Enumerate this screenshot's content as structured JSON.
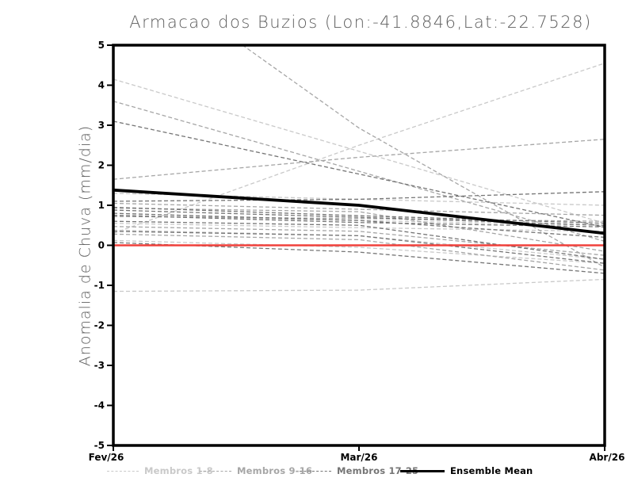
{
  "chart_data": {
    "type": "line",
    "title": "Armacao dos Buzios (Lon:-41.8846,Lat:-22.7528)",
    "xlabel": "",
    "ylabel": "Anomalia de Chuva (mm/dia)",
    "x_categories": [
      "Fev/26",
      "Mar/26",
      "Abr/26"
    ],
    "ylim": [
      -5,
      5
    ],
    "yticks": [
      5,
      4,
      3,
      2,
      1,
      0,
      -1,
      -2,
      -3,
      -4,
      -5
    ],
    "grid": false,
    "legend_position": "bottom",
    "axis_color": "#000000",
    "series_groups": [
      {
        "name": "Membros 1-8",
        "color": "#c9c9c9",
        "style": "dashed",
        "members": [
          [
            4.15,
            2.35,
            0.55
          ],
          [
            0.3,
            2.5,
            4.55
          ],
          [
            1.3,
            1.15,
            1.0
          ],
          [
            0.75,
            0.62,
            0.5
          ],
          [
            0.38,
            0.24,
            -0.35
          ],
          [
            0.12,
            -0.05,
            -0.45
          ],
          [
            -1.15,
            -1.12,
            -0.85
          ],
          [
            0.55,
            0.44,
            0.35
          ]
        ]
      },
      {
        "name": "Membros 9-16",
        "color": "#a6a6a6",
        "style": "dashed",
        "members": [
          [
            7.3,
            2.93,
            -0.55
          ],
          [
            1.65,
            2.2,
            2.65
          ],
          [
            3.6,
            1.85,
            0.1
          ],
          [
            0.93,
            0.84,
            -0.15
          ],
          [
            0.72,
            0.67,
            0.6
          ],
          [
            0.47,
            0.35,
            -0.25
          ],
          [
            0.28,
            0.14,
            -0.62
          ],
          [
            1.05,
            0.9,
            0.75
          ]
        ]
      },
      {
        "name": "Membros 17-25",
        "color": "#757575",
        "style": "dashed",
        "members": [
          [
            3.1,
            1.78,
            0.45
          ],
          [
            1.1,
            1.15,
            1.34
          ],
          [
            0.95,
            0.74,
            0.55
          ],
          [
            0.88,
            0.7,
            0.5
          ],
          [
            0.8,
            0.62,
            0.2
          ],
          [
            0.6,
            0.5,
            -0.35
          ],
          [
            0.35,
            0.24,
            -0.45
          ],
          [
            0.07,
            -0.17,
            -0.7
          ],
          [
            0.75,
            0.57,
            0.46
          ]
        ]
      }
    ],
    "ensemble_mean": {
      "name": "Ensemble Mean",
      "color": "#000000",
      "values": [
        1.38,
        1.0,
        0.3
      ]
    },
    "zero_line": {
      "color": "#f0413c",
      "values": [
        0,
        0,
        0
      ]
    }
  }
}
